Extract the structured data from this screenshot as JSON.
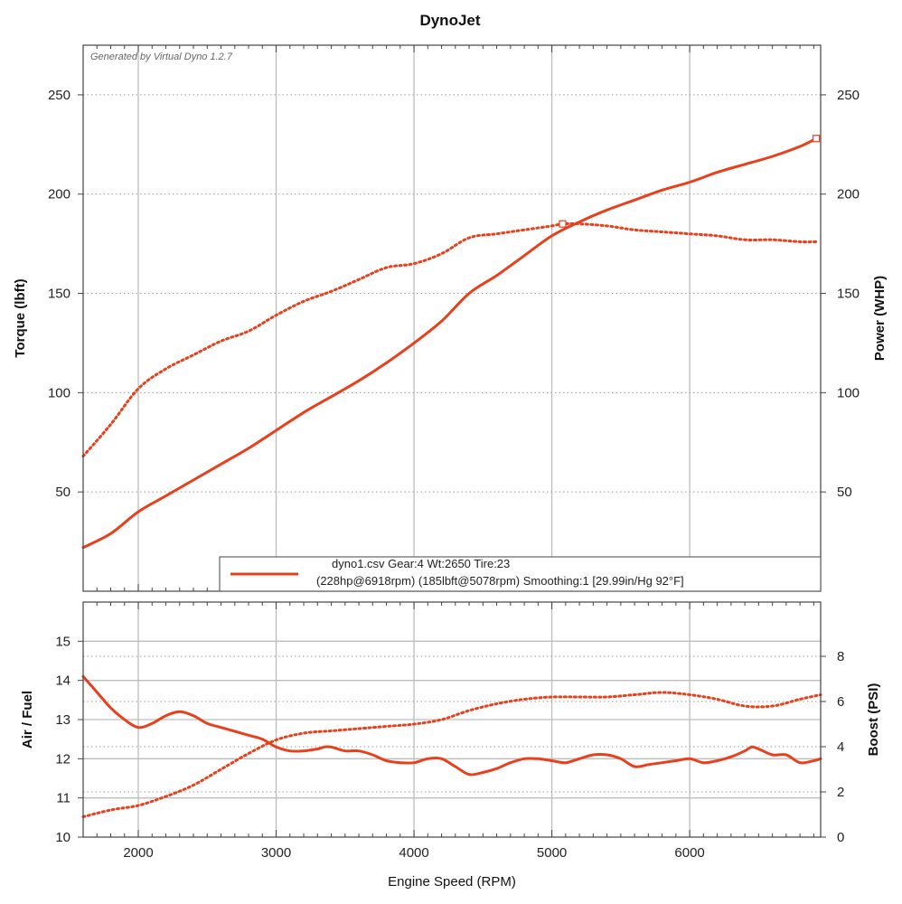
{
  "chart_data": [
    {
      "type": "line",
      "title": "DynoJet",
      "watermark": "Generated by Virtual Dyno 1.2.7",
      "xlabel": "Engine Speed (RPM)",
      "ylabel": "Torque (lbft)",
      "y2label": "Power (WHP)",
      "xlim": [
        1600,
        6950
      ],
      "ylim": [
        0,
        275
      ],
      "y2lim": [
        0,
        275
      ],
      "xticks": [
        2000,
        3000,
        4000,
        5000,
        6000
      ],
      "yticks": [
        50,
        100,
        150,
        200,
        250
      ],
      "y2ticks": [
        50,
        100,
        150,
        200,
        250
      ],
      "legend": {
        "line1": "dyno1.csv Gear:4 Wt:2650 Tire:23",
        "line2": "(228hp@6918rpm) (185lbft@5078rpm) Smoothing:1 [29.99in/Hg 92°F]"
      },
      "series": [
        {
          "name": "Power (WHP)",
          "axis": "right",
          "style": "solid",
          "x": [
            1600,
            1800,
            2000,
            2200,
            2400,
            2600,
            2800,
            3000,
            3200,
            3400,
            3600,
            3800,
            4000,
            4200,
            4400,
            4600,
            4800,
            5000,
            5200,
            5400,
            5600,
            5800,
            6000,
            6200,
            6400,
            6600,
            6800,
            6918
          ],
          "y": [
            22,
            29,
            40,
            48,
            56,
            64,
            72,
            81,
            90,
            98,
            106,
            115,
            125,
            136,
            150,
            159,
            169,
            179,
            186,
            192,
            197,
            202,
            206,
            211,
            215,
            219,
            224,
            228
          ]
        },
        {
          "name": "Torque (lbft)",
          "axis": "left",
          "style": "dotted",
          "x": [
            1600,
            1800,
            2000,
            2200,
            2400,
            2600,
            2800,
            3000,
            3200,
            3400,
            3600,
            3800,
            4000,
            4200,
            4400,
            4600,
            4800,
            5000,
            5078,
            5200,
            5400,
            5600,
            5800,
            6000,
            6200,
            6400,
            6600,
            6800,
            6918
          ],
          "y": [
            68,
            84,
            102,
            112,
            119,
            126,
            131,
            139,
            146,
            151,
            157,
            163,
            165,
            170,
            178,
            180,
            182,
            184,
            185,
            185,
            184,
            182,
            181,
            180,
            179,
            177,
            177,
            176,
            176
          ]
        }
      ]
    },
    {
      "type": "line",
      "xlabel": "Engine Speed (RPM)",
      "ylabel": "Air / Fuel",
      "y2label": "Boost (PSI)",
      "xlim": [
        1600,
        6950
      ],
      "ylim": [
        10,
        16
      ],
      "y2lim": [
        0,
        10.4
      ],
      "xticks": [
        2000,
        3000,
        4000,
        5000,
        6000
      ],
      "yticks": [
        10,
        11,
        12,
        13,
        14,
        15
      ],
      "y2ticks": [
        0,
        2,
        4,
        6,
        8
      ],
      "series": [
        {
          "name": "Air / Fuel",
          "axis": "left",
          "style": "solid",
          "x": [
            1600,
            1700,
            1800,
            1900,
            2000,
            2100,
            2200,
            2300,
            2400,
            2500,
            2600,
            2700,
            2800,
            2900,
            3000,
            3100,
            3200,
            3300,
            3350,
            3400,
            3500,
            3600,
            3700,
            3800,
            3900,
            4000,
            4100,
            4200,
            4300,
            4400,
            4500,
            4600,
            4700,
            4800,
            4900,
            5000,
            5100,
            5200,
            5300,
            5400,
            5500,
            5600,
            5700,
            5800,
            5900,
            6000,
            6100,
            6200,
            6300,
            6400,
            6450,
            6500,
            6600,
            6700,
            6800,
            6900,
            6950
          ],
          "y": [
            14.1,
            13.7,
            13.3,
            13.0,
            12.8,
            12.9,
            13.1,
            13.2,
            13.1,
            12.9,
            12.8,
            12.7,
            12.6,
            12.5,
            12.3,
            12.2,
            12.2,
            12.25,
            12.3,
            12.3,
            12.2,
            12.2,
            12.1,
            11.95,
            11.9,
            11.9,
            12.0,
            12.0,
            11.8,
            11.6,
            11.65,
            11.75,
            11.9,
            12.0,
            12.0,
            11.95,
            11.9,
            12.0,
            12.1,
            12.1,
            12.0,
            11.8,
            11.85,
            11.9,
            11.95,
            12.0,
            11.9,
            11.95,
            12.05,
            12.2,
            12.3,
            12.25,
            12.1,
            12.1,
            11.9,
            11.95,
            12.0
          ]
        },
        {
          "name": "Boost (PSI)",
          "axis": "right",
          "style": "dotted",
          "x": [
            1600,
            1800,
            2000,
            2200,
            2400,
            2600,
            2800,
            3000,
            3200,
            3400,
            3600,
            3800,
            4000,
            4200,
            4400,
            4600,
            4800,
            5000,
            5200,
            5400,
            5600,
            5800,
            6000,
            6200,
            6400,
            6600,
            6800,
            6950
          ],
          "y": [
            0.9,
            1.2,
            1.4,
            1.8,
            2.3,
            3.0,
            3.7,
            4.3,
            4.6,
            4.7,
            4.8,
            4.9,
            5.0,
            5.2,
            5.6,
            5.9,
            6.1,
            6.2,
            6.2,
            6.2,
            6.3,
            6.4,
            6.3,
            6.1,
            5.8,
            5.8,
            6.1,
            6.3
          ]
        }
      ]
    }
  ]
}
